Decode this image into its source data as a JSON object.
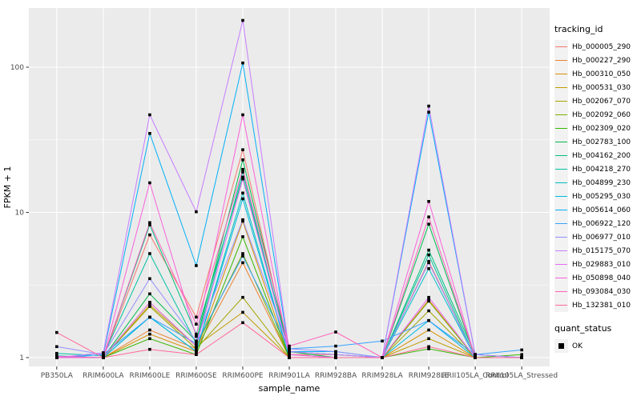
{
  "chart_data": {
    "type": "line",
    "title": "",
    "xlabel": "sample_name",
    "ylabel": "FPKM + 1",
    "yscale": "log10",
    "yticks": [
      1,
      10,
      100
    ],
    "ylim": [
      0.87,
      255
    ],
    "grid": "white major + minor gridlines on grey panel",
    "legend_position": "right",
    "point_shape": "small black square (quant_status OK)",
    "categories": [
      "PB350LA",
      "RRIM600LA",
      "RRIM600LE",
      "RRIM600SE",
      "RRIM600PE",
      "RRIM901LA",
      "RRIM928BA",
      "RRIM928LA",
      "RRIM928LE",
      "RRII105LA_Control",
      "RRII105LA_Stressed"
    ],
    "series": [
      {
        "name": "Hb_000005_290",
        "color": "#F8766D",
        "values": [
          1.0,
          1.0,
          7.0,
          1.9,
          27.0,
          1.05,
          1.05,
          1.0,
          4.6,
          1.0,
          1.0
        ]
      },
      {
        "name": "Hb_000227_290",
        "color": "#EA8331",
        "values": [
          1.0,
          1.0,
          1.55,
          1.15,
          4.5,
          1.0,
          1.0,
          1.0,
          2.5,
          1.0,
          1.0
        ]
      },
      {
        "name": "Hb_000310_050",
        "color": "#D89000",
        "values": [
          1.0,
          1.0,
          1.45,
          1.1,
          8.7,
          1.0,
          1.0,
          1.0,
          1.55,
          1.0,
          1.0
        ]
      },
      {
        "name": "Hb_000531_030",
        "color": "#C09B00",
        "values": [
          1.0,
          1.0,
          2.3,
          1.2,
          2.05,
          1.0,
          1.0,
          1.0,
          1.35,
          1.0,
          1.0
        ]
      },
      {
        "name": "Hb_002067_070",
        "color": "#A3A500",
        "values": [
          1.0,
          1.0,
          2.25,
          1.15,
          2.6,
          1.0,
          1.0,
          1.0,
          2.1,
          1.0,
          1.0
        ]
      },
      {
        "name": "Hb_002092_060",
        "color": "#7CAE00",
        "values": [
          1.0,
          1.0,
          2.4,
          1.2,
          5.2,
          1.0,
          1.0,
          1.0,
          2.45,
          1.0,
          1.0
        ]
      },
      {
        "name": "Hb_002309_020",
        "color": "#39B600",
        "values": [
          1.0,
          1.0,
          1.35,
          1.05,
          6.8,
          1.0,
          1.0,
          1.0,
          1.15,
          1.0,
          1.05
        ]
      },
      {
        "name": "Hb_002783_100",
        "color": "#00BB4E",
        "values": [
          1.0,
          1.0,
          2.75,
          1.3,
          23.0,
          1.1,
          1.0,
          1.0,
          8.3,
          1.0,
          1.0
        ]
      },
      {
        "name": "Hb_004162_200",
        "color": "#00BF7D",
        "values": [
          1.0,
          1.0,
          8.2,
          1.45,
          17.5,
          1.1,
          1.05,
          1.0,
          5.5,
          1.05,
          1.0
        ]
      },
      {
        "name": "Hb_004218_270",
        "color": "#00C1A3",
        "values": [
          1.07,
          1.03,
          5.2,
          1.25,
          19.0,
          1.05,
          1.0,
          1.0,
          5.1,
          1.0,
          1.0
        ]
      },
      {
        "name": "Hb_004899_230",
        "color": "#00BFC4",
        "values": [
          1.03,
          1.0,
          1.9,
          1.1,
          13.6,
          1.0,
          1.0,
          1.0,
          4.1,
          1.0,
          1.0
        ]
      },
      {
        "name": "Hb_005295_030",
        "color": "#00BAE0",
        "values": [
          1.0,
          1.0,
          1.9,
          1.1,
          12.4,
          1.0,
          1.0,
          1.0,
          1.8,
          1.0,
          1.0
        ]
      },
      {
        "name": "Hb_005614_060",
        "color": "#00B0F6",
        "values": [
          1.0,
          1.05,
          35.0,
          4.3,
          107.0,
          1.1,
          1.1,
          1.0,
          49.0,
          1.05,
          1.0
        ]
      },
      {
        "name": "Hb_006922_120",
        "color": "#35A2FF",
        "values": [
          1.0,
          1.05,
          1.9,
          1.25,
          5.0,
          1.15,
          1.2,
          1.3,
          1.8,
          1.05,
          1.13
        ]
      },
      {
        "name": "Hb_006977_010",
        "color": "#9590FF",
        "values": [
          1.19,
          1.05,
          3.5,
          1.3,
          8.9,
          1.15,
          1.1,
          1.0,
          4.5,
          1.0,
          1.0
        ]
      },
      {
        "name": "Hb_015175_070",
        "color": "#C77CFF",
        "values": [
          1.0,
          1.08,
          47.0,
          10.1,
          210.0,
          1.1,
          1.05,
          1.0,
          54.0,
          1.05,
          1.0
        ]
      },
      {
        "name": "Hb_029883_010",
        "color": "#E76BF3",
        "values": [
          1.0,
          1.0,
          2.4,
          1.2,
          17.0,
          1.05,
          1.0,
          1.0,
          2.6,
          1.0,
          1.0
        ]
      },
      {
        "name": "Hb_050898_040",
        "color": "#FA62DB",
        "values": [
          1.0,
          1.0,
          16.0,
          1.4,
          47.0,
          1.05,
          1.0,
          1.0,
          11.9,
          1.0,
          1.0
        ]
      },
      {
        "name": "Hb_093084_030",
        "color": "#FF62BC",
        "values": [
          1.02,
          1.0,
          8.5,
          1.7,
          19.8,
          1.2,
          1.5,
          1.0,
          9.3,
          1.0,
          1.0
        ]
      },
      {
        "name": "Hb_132381_010",
        "color": "#FF6A98",
        "values": [
          1.49,
          1.0,
          1.14,
          1.05,
          1.74,
          1.0,
          1.0,
          1.0,
          1.19,
          1.0,
          1.0
        ]
      }
    ]
  },
  "style": {
    "panel_bg": "#EBEBEB",
    "grid_color": "#FFFFFF",
    "tick_text_color": "#4D4D4D",
    "tick_mark_color": "#333333",
    "point_color": "#000000",
    "legend_key_bg": "#F2F2F2"
  },
  "legend": {
    "tracking_title": "tracking_id",
    "quant_title": "quant_status",
    "quant_items": [
      {
        "label": "OK",
        "symbol": "black-square"
      }
    ]
  }
}
